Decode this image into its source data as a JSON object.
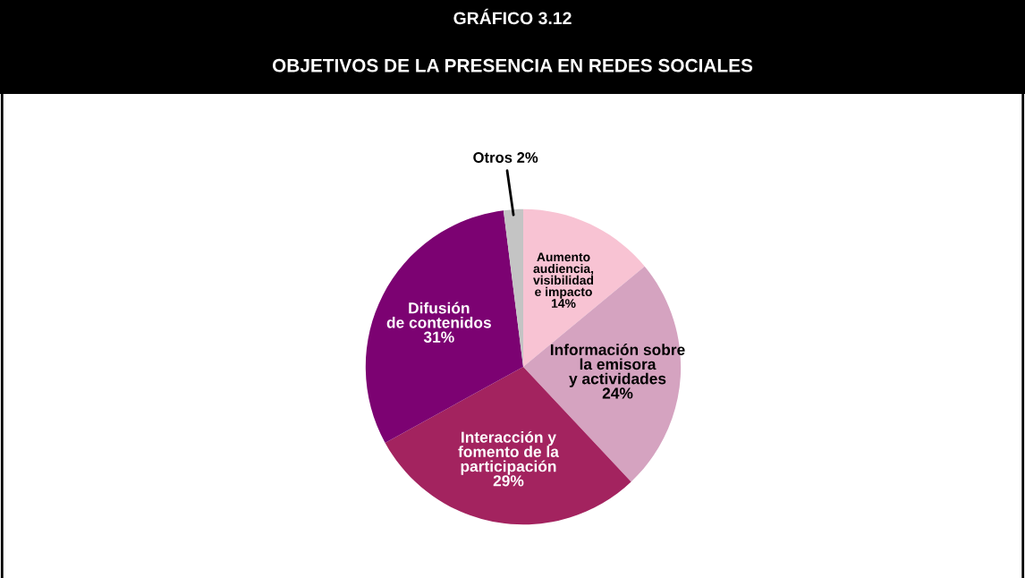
{
  "chart_data": {
    "type": "pie",
    "title": "GRÁFICO 3.12",
    "subtitle": "OBJETIVOS DE LA PRESENCIA EN REDES SOCIALES",
    "categories": [
      "Aumento\naudiencia,\nvisibilidad\ne impacto",
      "Información sobre\nla emisora\ny actividades",
      "Interacción y\nfomento de la\nparticipación",
      "Difusión\nde contenidos",
      "Otros"
    ],
    "values": [
      14,
      24,
      29,
      31,
      2
    ],
    "value_labels": [
      "14%",
      "24%",
      "29%",
      "31%",
      "2%"
    ],
    "colors": [
      "#f8c3d3",
      "#d5a3c0",
      "#a3235f",
      "#7c0272",
      "#c4c4c4"
    ],
    "legend": false
  }
}
